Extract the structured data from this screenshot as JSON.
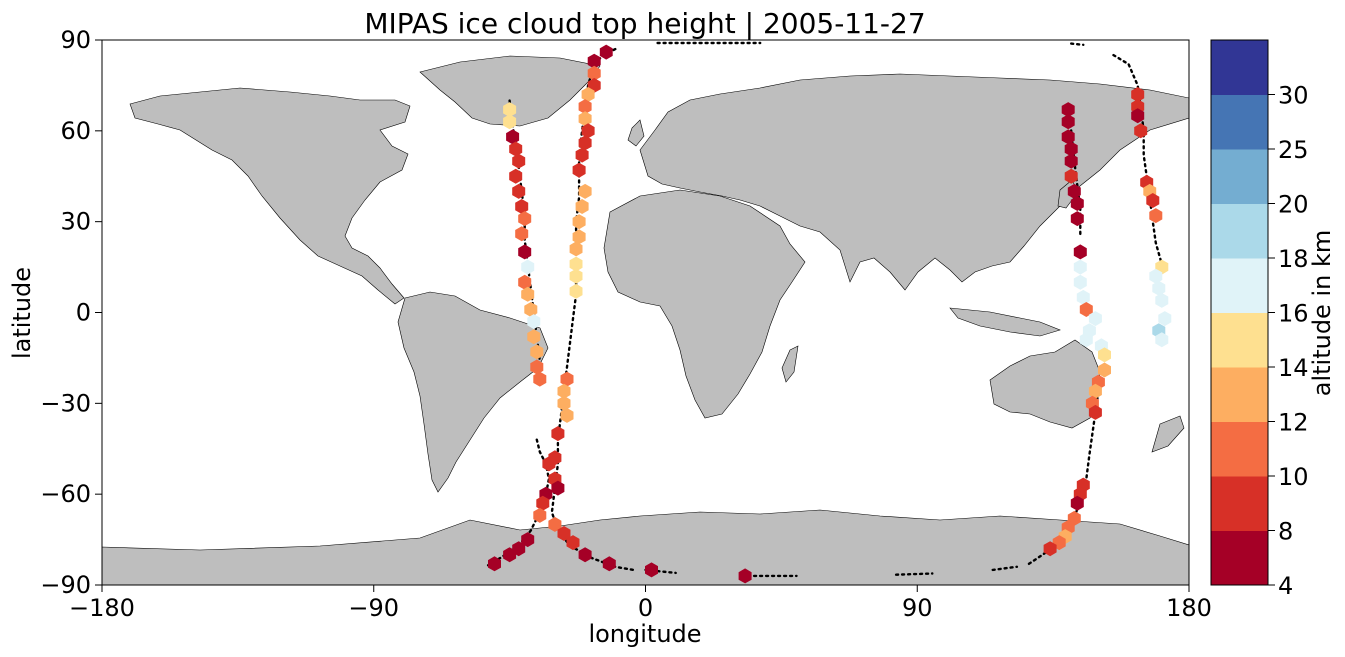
{
  "chart_data": {
    "type": "scatter",
    "title": "MIPAS ice cloud top height | 2005-11-27",
    "xlabel": "longitude",
    "ylabel": "latitude",
    "xlim": [
      -180,
      180
    ],
    "ylim": [
      -90,
      90
    ],
    "xticks": [
      -180,
      -90,
      0,
      90,
      180
    ],
    "yticks": [
      -90,
      -60,
      -30,
      0,
      30,
      60,
      90
    ],
    "xtick_labels": [
      "−180",
      "−90",
      "0",
      "90",
      "180"
    ],
    "ytick_labels": [
      "−90",
      "−60",
      "−30",
      "0",
      "30",
      "60",
      "90"
    ],
    "grid": false,
    "basemap": "world coastlines, land filled grey",
    "colorbar": {
      "label": "altitude in km",
      "position": "right",
      "boundaries": [
        4,
        8,
        10,
        12,
        14,
        16,
        18,
        20,
        25,
        30
      ],
      "tick_labels": [
        "4",
        "8",
        "10",
        "12",
        "14",
        "16",
        "18",
        "20",
        "25",
        "30"
      ],
      "colors": [
        "#a50026",
        "#d73027",
        "#f46d43",
        "#fdae61",
        "#fee090",
        "#e0f3f8",
        "#abd9e9",
        "#74add1",
        "#4575b4",
        "#313695"
      ]
    },
    "cloud_points": [
      {
        "lon": -45,
        "lat": 67,
        "alt": 14
      },
      {
        "lon": -45,
        "lat": 63,
        "alt": 14
      },
      {
        "lon": -44,
        "lat": 58,
        "alt": 5
      },
      {
        "lon": -43,
        "lat": 54,
        "alt": 9
      },
      {
        "lon": -42,
        "lat": 50,
        "alt": 9
      },
      {
        "lon": -43,
        "lat": 45,
        "alt": 9
      },
      {
        "lon": -42,
        "lat": 40,
        "alt": 9
      },
      {
        "lon": -41,
        "lat": 35,
        "alt": 9
      },
      {
        "lon": -40,
        "lat": 31,
        "alt": 11
      },
      {
        "lon": -41,
        "lat": 26,
        "alt": 11
      },
      {
        "lon": -40,
        "lat": 20,
        "alt": 5
      },
      {
        "lon": -39,
        "lat": 15,
        "alt": 17
      },
      {
        "lon": -40,
        "lat": 10,
        "alt": 11
      },
      {
        "lon": -39,
        "lat": 6,
        "alt": 13
      },
      {
        "lon": -38,
        "lat": 1,
        "alt": 13
      },
      {
        "lon": -37,
        "lat": -3,
        "alt": 17
      },
      {
        "lon": -37,
        "lat": -8,
        "alt": 13
      },
      {
        "lon": -36,
        "lat": -13,
        "alt": 13
      },
      {
        "lon": -36,
        "lat": -18,
        "alt": 11
      },
      {
        "lon": -35,
        "lat": -22,
        "alt": 11
      },
      {
        "lon": -13,
        "lat": 86,
        "alt": 5
      },
      {
        "lon": -17,
        "lat": 83,
        "alt": 5
      },
      {
        "lon": -17,
        "lat": 79,
        "alt": 11
      },
      {
        "lon": -17,
        "lat": 75,
        "alt": 9
      },
      {
        "lon": -19,
        "lat": 72,
        "alt": 13
      },
      {
        "lon": -20,
        "lat": 68,
        "alt": 11
      },
      {
        "lon": -20,
        "lat": 64,
        "alt": 13
      },
      {
        "lon": -19,
        "lat": 60,
        "alt": 9
      },
      {
        "lon": -20,
        "lat": 56,
        "alt": 9
      },
      {
        "lon": -21,
        "lat": 52,
        "alt": 9
      },
      {
        "lon": -22,
        "lat": 47,
        "alt": 9
      },
      {
        "lon": -20,
        "lat": 40,
        "alt": 13
      },
      {
        "lon": -21,
        "lat": 35,
        "alt": 13
      },
      {
        "lon": -22,
        "lat": 30,
        "alt": 13
      },
      {
        "lon": -22,
        "lat": 25,
        "alt": 13
      },
      {
        "lon": -23,
        "lat": 21,
        "alt": 13
      },
      {
        "lon": -23,
        "lat": 16,
        "alt": 15
      },
      {
        "lon": -23,
        "lat": 12,
        "alt": 15
      },
      {
        "lon": -23,
        "lat": 7,
        "alt": 15
      },
      {
        "lon": -26,
        "lat": -22,
        "alt": 11
      },
      {
        "lon": -27,
        "lat": -26,
        "alt": 13
      },
      {
        "lon": -27,
        "lat": -30,
        "alt": 13
      },
      {
        "lon": -26,
        "lat": -34,
        "alt": 13
      },
      {
        "lon": -29,
        "lat": -40,
        "alt": 9
      },
      {
        "lon": -30,
        "lat": -48,
        "alt": 9
      },
      {
        "lon": -32,
        "lat": -50,
        "alt": 9
      },
      {
        "lon": -30,
        "lat": -55,
        "alt": 9
      },
      {
        "lon": -29,
        "lat": -58,
        "alt": 5
      },
      {
        "lon": -33,
        "lat": -60,
        "alt": 5
      },
      {
        "lon": -34,
        "lat": -63,
        "alt": 9
      },
      {
        "lon": -35,
        "lat": -67,
        "alt": 11
      },
      {
        "lon": -30,
        "lat": -70,
        "alt": 11
      },
      {
        "lon": -27,
        "lat": -73,
        "alt": 9
      },
      {
        "lon": -24,
        "lat": -76,
        "alt": 9
      },
      {
        "lon": -20,
        "lat": -80,
        "alt": 5
      },
      {
        "lon": -12,
        "lat": -83,
        "alt": 5
      },
      {
        "lon": 2,
        "lat": -85,
        "alt": 5
      },
      {
        "lon": 33,
        "lat": -87,
        "alt": 5
      },
      {
        "lon": -39,
        "lat": -75,
        "alt": 5
      },
      {
        "lon": -42,
        "lat": -78,
        "alt": 5
      },
      {
        "lon": -45,
        "lat": -80,
        "alt": 5
      },
      {
        "lon": -50,
        "lat": -83,
        "alt": 5
      },
      {
        "lon": 140,
        "lat": 67,
        "alt": 5
      },
      {
        "lon": 140,
        "lat": 63,
        "alt": 5
      },
      {
        "lon": 140,
        "lat": 58,
        "alt": 5
      },
      {
        "lon": 141,
        "lat": 54,
        "alt": 5
      },
      {
        "lon": 141,
        "lat": 50,
        "alt": 5
      },
      {
        "lon": 141,
        "lat": 45,
        "alt": 9
      },
      {
        "lon": 142,
        "lat": 40,
        "alt": 5
      },
      {
        "lon": 143,
        "lat": 36,
        "alt": 5
      },
      {
        "lon": 143,
        "lat": 31,
        "alt": 5
      },
      {
        "lon": 144,
        "lat": 20,
        "alt": 5
      },
      {
        "lon": 144,
        "lat": 15,
        "alt": 17
      },
      {
        "lon": 144,
        "lat": 10,
        "alt": 17
      },
      {
        "lon": 145,
        "lat": 5,
        "alt": 17
      },
      {
        "lon": 146,
        "lat": 1,
        "alt": 11
      },
      {
        "lon": 149,
        "lat": -2,
        "alt": 17
      },
      {
        "lon": 147,
        "lat": -6,
        "alt": 17
      },
      {
        "lon": 146,
        "lat": -9,
        "alt": 17
      },
      {
        "lon": 151,
        "lat": -11,
        "alt": 17
      },
      {
        "lon": 152,
        "lat": -14,
        "alt": 15
      },
      {
        "lon": 152,
        "lat": -19,
        "alt": 13
      },
      {
        "lon": 150,
        "lat": -23,
        "alt": 11
      },
      {
        "lon": 149,
        "lat": -26,
        "alt": 13
      },
      {
        "lon": 148,
        "lat": -30,
        "alt": 11
      },
      {
        "lon": 149,
        "lat": -33,
        "alt": 9
      },
      {
        "lon": 145,
        "lat": -57,
        "alt": 9
      },
      {
        "lon": 144,
        "lat": -60,
        "alt": 9
      },
      {
        "lon": 143,
        "lat": -63,
        "alt": 5
      },
      {
        "lon": 142,
        "lat": -68,
        "alt": 11
      },
      {
        "lon": 140,
        "lat": -71,
        "alt": 11
      },
      {
        "lon": 139,
        "lat": -74,
        "alt": 13
      },
      {
        "lon": 137,
        "lat": -76,
        "alt": 11
      },
      {
        "lon": 134,
        "lat": -78,
        "alt": 9
      },
      {
        "lon": 163,
        "lat": 72,
        "alt": 9
      },
      {
        "lon": 163,
        "lat": 68,
        "alt": 9
      },
      {
        "lon": 163,
        "lat": 65,
        "alt": 5
      },
      {
        "lon": 164,
        "lat": 60,
        "alt": 9
      },
      {
        "lon": 166,
        "lat": 43,
        "alt": 9
      },
      {
        "lon": 167,
        "lat": 40,
        "alt": 13
      },
      {
        "lon": 168,
        "lat": 37,
        "alt": 9
      },
      {
        "lon": 169,
        "lat": 32,
        "alt": 11
      },
      {
        "lon": 171,
        "lat": 15,
        "alt": 15
      },
      {
        "lon": 169,
        "lat": 12,
        "alt": 17
      },
      {
        "lon": 170,
        "lat": 8,
        "alt": 17
      },
      {
        "lon": 171,
        "lat": 4,
        "alt": 17
      },
      {
        "lon": 172,
        "lat": -2,
        "alt": 17
      },
      {
        "lon": 170,
        "lat": -6,
        "alt": 19
      },
      {
        "lon": 171,
        "lat": -9,
        "alt": 17
      }
    ],
    "track_segments": [
      [
        [
          -45,
          70
        ],
        [
          -44,
          62
        ],
        [
          -43,
          55
        ],
        [
          -42,
          48
        ],
        [
          -41,
          40
        ],
        [
          -40,
          32
        ],
        [
          -40,
          24
        ],
        [
          -39,
          16
        ],
        [
          -38,
          8
        ],
        [
          -37,
          0
        ],
        [
          -36,
          -8
        ],
        [
          -35,
          -16
        ],
        [
          -34,
          -24
        ]
      ],
      [
        [
          -36,
          -42
        ],
        [
          -35,
          -46
        ],
        [
          -33,
          -50
        ],
        [
          -32,
          -55
        ],
        [
          -33,
          -60
        ],
        [
          -35,
          -66
        ],
        [
          -38,
          -72
        ],
        [
          -42,
          -77
        ],
        [
          -48,
          -81
        ],
        [
          -53,
          -84
        ]
      ],
      [
        [
          -10,
          87
        ],
        [
          -14,
          85
        ],
        [
          -17,
          82
        ],
        [
          -19,
          75
        ],
        [
          -20,
          68
        ],
        [
          -21,
          60
        ],
        [
          -22,
          52
        ],
        [
          -22,
          45
        ],
        [
          -22,
          38
        ],
        [
          -23,
          30
        ],
        [
          -23,
          22
        ],
        [
          -23,
          14
        ],
        [
          -23,
          6
        ],
        [
          -24,
          -2
        ],
        [
          -25,
          -10
        ],
        [
          -26,
          -18
        ],
        [
          -27,
          -26
        ],
        [
          -28,
          -34
        ],
        [
          -29,
          -42
        ],
        [
          -29,
          -50
        ],
        [
          -30,
          -58
        ],
        [
          -31,
          -66
        ],
        [
          -29,
          -72
        ],
        [
          -25,
          -77
        ],
        [
          -18,
          -81
        ],
        [
          -10,
          -84
        ],
        [
          -4,
          -85
        ]
      ],
      [
        [
          0,
          -85
        ],
        [
          10,
          -86
        ]
      ],
      [
        [
          32,
          -87
        ],
        [
          50,
          -87
        ]
      ],
      [
        [
          83,
          -86.6
        ],
        [
          95,
          -86.2
        ]
      ],
      [
        [
          115,
          -85
        ],
        [
          123,
          -84
        ]
      ],
      [
        [
          127,
          -83
        ],
        [
          133,
          -79
        ],
        [
          137,
          -75
        ],
        [
          141,
          -70
        ],
        [
          143,
          -65
        ],
        [
          145,
          -60
        ],
        [
          146,
          -55
        ],
        [
          147,
          -47
        ],
        [
          148,
          -40
        ],
        [
          149,
          -33
        ],
        [
          150,
          -26
        ]
      ],
      [
        [
          140,
          68
        ],
        [
          141,
          60
        ],
        [
          142,
          50
        ],
        [
          143,
          42
        ],
        [
          144,
          34
        ],
        [
          144,
          25
        ]
      ],
      [
        [
          141,
          88.8
        ],
        [
          145,
          88.4
        ]
      ],
      [
        [
          155,
          85
        ],
        [
          160,
          82
        ],
        [
          163,
          75
        ],
        [
          164,
          68
        ],
        [
          165,
          60
        ],
        [
          165,
          52
        ],
        [
          166,
          45
        ],
        [
          167,
          38
        ],
        [
          168,
          30
        ],
        [
          169,
          23
        ],
        [
          171,
          16
        ]
      ],
      [
        [
          4,
          89
        ],
        [
          38,
          89
        ]
      ]
    ]
  }
}
